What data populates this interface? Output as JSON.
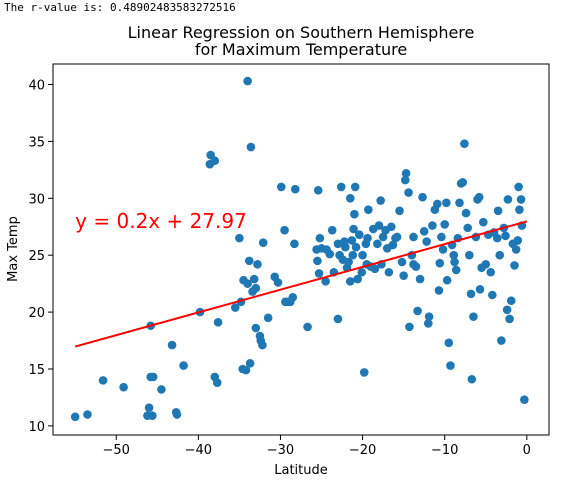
{
  "output_text": "The r-value is: 0.48902483583272516",
  "chart_data": {
    "type": "scatter",
    "title_lines": [
      "Linear Regression on Southern Hemisphere",
      "for Maximum Temperature"
    ],
    "xlabel": "Latitude",
    "ylabel": "Max Temp",
    "xlim": [
      -57.7,
      2.7
    ],
    "ylim": [
      9.2,
      41.8
    ],
    "xticks": [
      -50,
      -40,
      -30,
      -20,
      -10,
      0
    ],
    "yticks": [
      10,
      15,
      20,
      25,
      30,
      35,
      40
    ],
    "grid": false,
    "point_color": "#1f77b4",
    "line_color": "#ff0000",
    "annotation": {
      "text": "y = 0.2x + 27.97",
      "x": -55,
      "y": 28,
      "color": "#ff0000"
    },
    "regression": {
      "slope": 0.2,
      "intercept": 27.97,
      "x_start": -55,
      "x_end": 0
    },
    "points": [
      [
        -55,
        10.8
      ],
      [
        -53.5,
        11.0
      ],
      [
        -51.6,
        14.0
      ],
      [
        -49.1,
        13.4
      ],
      [
        -46.2,
        10.9
      ],
      [
        -46.0,
        11.6
      ],
      [
        -45.8,
        14.3
      ],
      [
        -45.6,
        10.9
      ],
      [
        -45.5,
        14.3
      ],
      [
        -44.5,
        13.2
      ],
      [
        -45.8,
        18.8
      ],
      [
        -43.2,
        17.1
      ],
      [
        -42.7,
        11.2
      ],
      [
        -42.6,
        11.0
      ],
      [
        -41.8,
        15.3
      ],
      [
        -39.8,
        20.0
      ],
      [
        -38.6,
        33.0
      ],
      [
        -38.5,
        33.8
      ],
      [
        -38.0,
        33.3
      ],
      [
        -38.0,
        14.3
      ],
      [
        -37.7,
        13.8
      ],
      [
        -37.6,
        19.1
      ],
      [
        -35.5,
        20.4
      ],
      [
        -35.0,
        26.5
      ],
      [
        -34.8,
        20.9
      ],
      [
        -34.6,
        15.0
      ],
      [
        -34.5,
        22.8
      ],
      [
        -34.2,
        14.9
      ],
      [
        -34.0,
        40.3
      ],
      [
        -34.0,
        22.5
      ],
      [
        -33.8,
        24.5
      ],
      [
        -33.7,
        15.5
      ],
      [
        -33.6,
        34.5
      ],
      [
        -33.4,
        21.8
      ],
      [
        -33.2,
        22.9
      ],
      [
        -33.0,
        22.1
      ],
      [
        -32.8,
        24.2
      ],
      [
        -33.0,
        18.6
      ],
      [
        -32.5,
        17.9
      ],
      [
        -32.4,
        17.5
      ],
      [
        -32.2,
        17.1
      ],
      [
        -32.1,
        26.1
      ],
      [
        -31.5,
        19.5
      ],
      [
        -30.7,
        23.1
      ],
      [
        -30.3,
        22.6
      ],
      [
        -29.9,
        31.0
      ],
      [
        -29.5,
        27.2
      ],
      [
        -29.4,
        20.9
      ],
      [
        -29.2,
        20.9
      ],
      [
        -28.8,
        20.9
      ],
      [
        -28.5,
        21.3
      ],
      [
        -28.3,
        26.0
      ],
      [
        -28.2,
        30.8
      ],
      [
        -26.7,
        18.7
      ],
      [
        -25.6,
        25.5
      ],
      [
        -25.5,
        24.5
      ],
      [
        -25.4,
        30.7
      ],
      [
        -25.3,
        23.4
      ],
      [
        -25.2,
        26.5
      ],
      [
        -25.0,
        25.6
      ],
      [
        -24.5,
        22.7
      ],
      [
        -24.4,
        25.5
      ],
      [
        -24.0,
        25.1
      ],
      [
        -23.7,
        27.2
      ],
      [
        -23.5,
        23.5
      ],
      [
        -23.0,
        19.4
      ],
      [
        -23.0,
        26.0
      ],
      [
        -22.8,
        25.0
      ],
      [
        -22.6,
        31.0
      ],
      [
        -22.4,
        24.6
      ],
      [
        -22.2,
        26.2
      ],
      [
        -22.1,
        25.7
      ],
      [
        -21.9,
        23.9
      ],
      [
        -21.7,
        24.4
      ],
      [
        -21.5,
        30.0
      ],
      [
        -21.5,
        22.7
      ],
      [
        -21.3,
        26.3
      ],
      [
        -21.2,
        25.0
      ],
      [
        -21.1,
        27.3
      ],
      [
        -21.0,
        28.6
      ],
      [
        -20.9,
        31.0
      ],
      [
        -20.8,
        25.7
      ],
      [
        -20.6,
        22.9
      ],
      [
        -20.4,
        26.8
      ],
      [
        -20.1,
        23.5
      ],
      [
        -20.0,
        25.0
      ],
      [
        -19.8,
        14.7
      ],
      [
        -19.6,
        26.0
      ],
      [
        -19.5,
        24.2
      ],
      [
        -19.4,
        26.5
      ],
      [
        -19.3,
        29.0
      ],
      [
        -19.0,
        24.0
      ],
      [
        -18.7,
        27.3
      ],
      [
        -18.5,
        23.8
      ],
      [
        -18.2,
        26.0
      ],
      [
        -18.0,
        27.6
      ],
      [
        -17.8,
        29.8
      ],
      [
        -17.7,
        24.2
      ],
      [
        -17.5,
        26.6
      ],
      [
        -17.2,
        27.2
      ],
      [
        -17.0,
        25.6
      ],
      [
        -16.8,
        23.5
      ],
      [
        -16.5,
        27.5
      ],
      [
        -16.3,
        25.9
      ],
      [
        -16.0,
        26.5
      ],
      [
        -15.8,
        26.6
      ],
      [
        -15.5,
        28.9
      ],
      [
        -15.2,
        24.4
      ],
      [
        -15.0,
        23.2
      ],
      [
        -14.8,
        31.6
      ],
      [
        -14.7,
        32.2
      ],
      [
        -14.4,
        30.5
      ],
      [
        -14.3,
        18.7
      ],
      [
        -14.0,
        25.0
      ],
      [
        -13.8,
        24.2
      ],
      [
        -13.8,
        26.6
      ],
      [
        -13.5,
        24.0
      ],
      [
        -13.3,
        20.1
      ],
      [
        -13.0,
        22.9
      ],
      [
        -12.7,
        30.1
      ],
      [
        -12.5,
        27.1
      ],
      [
        -12.2,
        26.2
      ],
      [
        -12.0,
        19.0
      ],
      [
        -11.9,
        19.6
      ],
      [
        -11.5,
        27.6
      ],
      [
        -11.2,
        29.0
      ],
      [
        -10.9,
        29.5
      ],
      [
        -10.7,
        21.9
      ],
      [
        -10.6,
        24.3
      ],
      [
        -10.4,
        26.6
      ],
      [
        -10.2,
        25.5
      ],
      [
        -10.0,
        27.7
      ],
      [
        -9.8,
        29.6
      ],
      [
        -9.7,
        22.8
      ],
      [
        -9.5,
        17.3
      ],
      [
        -9.3,
        15.3
      ],
      [
        -9.1,
        25.9
      ],
      [
        -8.9,
        25.0
      ],
      [
        -8.8,
        24.4
      ],
      [
        -8.6,
        23.7
      ],
      [
        -8.4,
        26.5
      ],
      [
        -8.2,
        29.6
      ],
      [
        -8.0,
        31.3
      ],
      [
        -7.8,
        31.4
      ],
      [
        -7.6,
        34.8
      ],
      [
        -7.4,
        28.7
      ],
      [
        -7.2,
        27.4
      ],
      [
        -7.0,
        25.0
      ],
      [
        -6.8,
        21.6
      ],
      [
        -6.7,
        14.1
      ],
      [
        -6.5,
        19.6
      ],
      [
        -6.2,
        26.6
      ],
      [
        -6.0,
        29.9
      ],
      [
        -5.8,
        30.1
      ],
      [
        -5.7,
        22.0
      ],
      [
        -5.5,
        23.9
      ],
      [
        -5.3,
        27.9
      ],
      [
        -5.0,
        24.2
      ],
      [
        -4.7,
        26.8
      ],
      [
        -4.4,
        23.5
      ],
      [
        -4.2,
        21.5
      ],
      [
        -4.0,
        27.0
      ],
      [
        -3.6,
        26.5
      ],
      [
        -3.5,
        28.9
      ],
      [
        -3.3,
        25.0
      ],
      [
        -3.1,
        17.5
      ],
      [
        -2.8,
        27.4
      ],
      [
        -2.6,
        26.7
      ],
      [
        -2.4,
        20.2
      ],
      [
        -2.3,
        29.9
      ],
      [
        -2.1,
        19.4
      ],
      [
        -1.9,
        21.0
      ],
      [
        -1.7,
        26.0
      ],
      [
        -1.5,
        24.1
      ],
      [
        -1.3,
        25.5
      ],
      [
        -1.1,
        26.3
      ],
      [
        -1.0,
        31.0
      ],
      [
        -0.9,
        29.0
      ],
      [
        -0.7,
        29.9
      ],
      [
        -0.6,
        27.6
      ],
      [
        -0.3,
        12.3
      ]
    ]
  }
}
